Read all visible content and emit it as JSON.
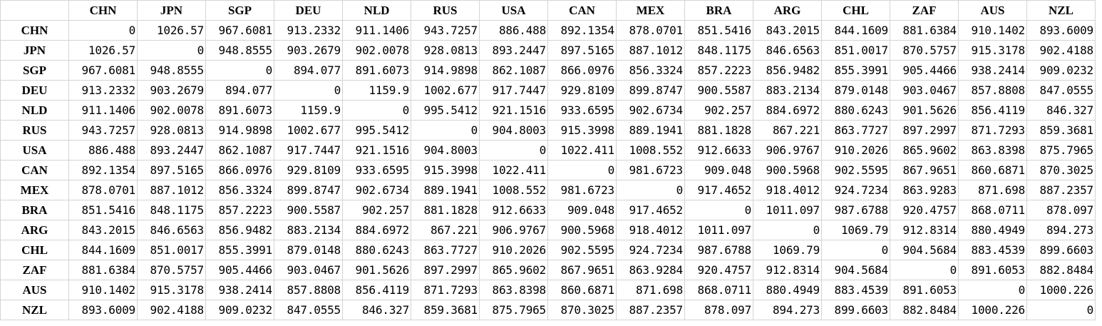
{
  "sheet": {
    "corner": "",
    "columns": [
      "CHN",
      "JPN",
      "SGP",
      "DEU",
      "NLD",
      "RUS",
      "USA",
      "CAN",
      "MEX",
      "BRA",
      "ARG",
      "CHL",
      "ZAF",
      "AUS",
      "NZL"
    ],
    "rows": [
      {
        "label": "CHN",
        "values": [
          "0",
          "1026.57",
          "967.6081",
          "913.2332",
          "911.1406",
          "943.7257",
          "886.488",
          "892.1354",
          "878.0701",
          "851.5416",
          "843.2015",
          "844.1609",
          "881.6384",
          "910.1402",
          "893.6009"
        ]
      },
      {
        "label": "JPN",
        "values": [
          "1026.57",
          "0",
          "948.8555",
          "903.2679",
          "902.0078",
          "928.0813",
          "893.2447",
          "897.5165",
          "887.1012",
          "848.1175",
          "846.6563",
          "851.0017",
          "870.5757",
          "915.3178",
          "902.4188"
        ]
      },
      {
        "label": "SGP",
        "values": [
          "967.6081",
          "948.8555",
          "0",
          "894.077",
          "891.6073",
          "914.9898",
          "862.1087",
          "866.0976",
          "856.3324",
          "857.2223",
          "856.9482",
          "855.3991",
          "905.4466",
          "938.2414",
          "909.0232"
        ]
      },
      {
        "label": "DEU",
        "values": [
          "913.2332",
          "903.2679",
          "894.077",
          "0",
          "1159.9",
          "1002.677",
          "917.7447",
          "929.8109",
          "899.8747",
          "900.5587",
          "883.2134",
          "879.0148",
          "903.0467",
          "857.8808",
          "847.0555"
        ]
      },
      {
        "label": "NLD",
        "values": [
          "911.1406",
          "902.0078",
          "891.6073",
          "1159.9",
          "0",
          "995.5412",
          "921.1516",
          "933.6595",
          "902.6734",
          "902.257",
          "884.6972",
          "880.6243",
          "901.5626",
          "856.4119",
          "846.327"
        ]
      },
      {
        "label": "RUS",
        "values": [
          "943.7257",
          "928.0813",
          "914.9898",
          "1002.677",
          "995.5412",
          "0",
          "904.8003",
          "915.3998",
          "889.1941",
          "881.1828",
          "867.221",
          "863.7727",
          "897.2997",
          "871.7293",
          "859.3681"
        ]
      },
      {
        "label": "USA",
        "values": [
          "886.488",
          "893.2447",
          "862.1087",
          "917.7447",
          "921.1516",
          "904.8003",
          "0",
          "1022.411",
          "1008.552",
          "912.6633",
          "906.9767",
          "910.2026",
          "865.9602",
          "863.8398",
          "875.7965"
        ]
      },
      {
        "label": "CAN",
        "values": [
          "892.1354",
          "897.5165",
          "866.0976",
          "929.8109",
          "933.6595",
          "915.3998",
          "1022.411",
          "0",
          "981.6723",
          "909.048",
          "900.5968",
          "902.5595",
          "867.9651",
          "860.6871",
          "870.3025"
        ]
      },
      {
        "label": "MEX",
        "values": [
          "878.0701",
          "887.1012",
          "856.3324",
          "899.8747",
          "902.6734",
          "889.1941",
          "1008.552",
          "981.6723",
          "0",
          "917.4652",
          "918.4012",
          "924.7234",
          "863.9283",
          "871.698",
          "887.2357"
        ]
      },
      {
        "label": "BRA",
        "values": [
          "851.5416",
          "848.1175",
          "857.2223",
          "900.5587",
          "902.257",
          "881.1828",
          "912.6633",
          "909.048",
          "917.4652",
          "0",
          "1011.097",
          "987.6788",
          "920.4757",
          "868.0711",
          "878.097"
        ]
      },
      {
        "label": "ARG",
        "values": [
          "843.2015",
          "846.6563",
          "856.9482",
          "883.2134",
          "884.6972",
          "867.221",
          "906.9767",
          "900.5968",
          "918.4012",
          "1011.097",
          "0",
          "1069.79",
          "912.8314",
          "880.4949",
          "894.273"
        ]
      },
      {
        "label": "CHL",
        "values": [
          "844.1609",
          "851.0017",
          "855.3991",
          "879.0148",
          "880.6243",
          "863.7727",
          "910.2026",
          "902.5595",
          "924.7234",
          "987.6788",
          "1069.79",
          "0",
          "904.5684",
          "883.4539",
          "899.6603"
        ]
      },
      {
        "label": "ZAF",
        "values": [
          "881.6384",
          "870.5757",
          "905.4466",
          "903.0467",
          "901.5626",
          "897.2997",
          "865.9602",
          "867.9651",
          "863.9284",
          "920.4757",
          "912.8314",
          "904.5684",
          "0",
          "891.6053",
          "882.8484"
        ]
      },
      {
        "label": "AUS",
        "values": [
          "910.1402",
          "915.3178",
          "938.2414",
          "857.8808",
          "856.4119",
          "871.7293",
          "863.8398",
          "860.6871",
          "871.698",
          "868.0711",
          "880.4949",
          "883.4539",
          "891.6053",
          "0",
          "1000.226"
        ]
      },
      {
        "label": "NZL",
        "values": [
          "893.6009",
          "902.4188",
          "909.0232",
          "847.0555",
          "846.327",
          "859.3681",
          "875.7965",
          "870.3025",
          "887.2357",
          "878.097",
          "894.273",
          "899.6603",
          "882.8484",
          "1000.226",
          "0"
        ]
      }
    ]
  }
}
